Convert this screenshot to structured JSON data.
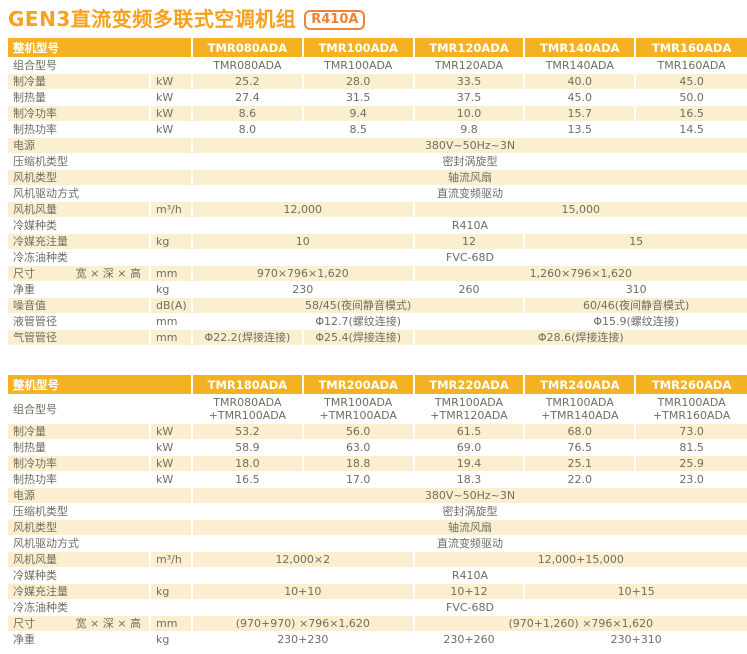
{
  "title": "GEN3直流变频多联式空调机组",
  "badge": "R410A",
  "colors": {
    "header_bg": "#F4B223",
    "stripe_bg": "#FCEFD0",
    "title_color": "#F7A11E",
    "badge_color": "#F08233",
    "text_color": "#6E6E62"
  },
  "tables": [
    {
      "corner_label": "整机型号",
      "models": [
        "TMR080ADA",
        "TMR100ADA",
        "TMR120ADA",
        "TMR140ADA",
        "TMR160ADA"
      ],
      "rows": [
        {
          "label": "组合型号",
          "unit": "",
          "sublabel": "",
          "cells": [
            {
              "t": "TMR080ADA",
              "s": 1
            },
            {
              "t": "TMR100ADA",
              "s": 1
            },
            {
              "t": "TMR120ADA",
              "s": 1
            },
            {
              "t": "TMR140ADA",
              "s": 1
            },
            {
              "t": "TMR160ADA",
              "s": 1
            }
          ]
        },
        {
          "label": "制冷量",
          "unit": "kW",
          "sublabel": "",
          "cells": [
            {
              "t": "25.2",
              "s": 1
            },
            {
              "t": "28.0",
              "s": 1
            },
            {
              "t": "33.5",
              "s": 1
            },
            {
              "t": "40.0",
              "s": 1
            },
            {
              "t": "45.0",
              "s": 1
            }
          ]
        },
        {
          "label": "制热量",
          "unit": "kW",
          "sublabel": "",
          "cells": [
            {
              "t": "27.4",
              "s": 1
            },
            {
              "t": "31.5",
              "s": 1
            },
            {
              "t": "37.5",
              "s": 1
            },
            {
              "t": "45.0",
              "s": 1
            },
            {
              "t": "50.0",
              "s": 1
            }
          ]
        },
        {
          "label": "制冷功率",
          "unit": "kW",
          "sublabel": "",
          "cells": [
            {
              "t": "8.6",
              "s": 1
            },
            {
              "t": "9.4",
              "s": 1
            },
            {
              "t": "10.0",
              "s": 1
            },
            {
              "t": "15.7",
              "s": 1
            },
            {
              "t": "16.5",
              "s": 1
            }
          ]
        },
        {
          "label": "制热功率",
          "unit": "kW",
          "sublabel": "",
          "cells": [
            {
              "t": "8.0",
              "s": 1
            },
            {
              "t": "8.5",
              "s": 1
            },
            {
              "t": "9.8",
              "s": 1
            },
            {
              "t": "13.5",
              "s": 1
            },
            {
              "t": "14.5",
              "s": 1
            }
          ]
        },
        {
          "label": "电源",
          "unit": "",
          "sublabel": "",
          "cells": [
            {
              "t": "380V~50Hz~3N",
              "s": 5
            }
          ]
        },
        {
          "label": "压缩机类型",
          "unit": "",
          "sublabel": "",
          "cells": [
            {
              "t": "密封涡旋型",
              "s": 5
            }
          ]
        },
        {
          "label": "风机类型",
          "unit": "",
          "sublabel": "",
          "cells": [
            {
              "t": "轴流风扇",
              "s": 5
            }
          ]
        },
        {
          "label": "风机驱动方式",
          "unit": "",
          "sublabel": "",
          "cells": [
            {
              "t": "直流变频驱动",
              "s": 5
            }
          ]
        },
        {
          "label": "风机风量",
          "unit": "m³/h",
          "sublabel": "",
          "cells": [
            {
              "t": "12,000",
              "s": 2
            },
            {
              "t": "15,000",
              "s": 3
            }
          ]
        },
        {
          "label": "冷媒种类",
          "unit": "",
          "sublabel": "",
          "cells": [
            {
              "t": "R410A",
              "s": 5
            }
          ]
        },
        {
          "label": "冷媒充注量",
          "unit": "kg",
          "sublabel": "",
          "cells": [
            {
              "t": "10",
              "s": 2
            },
            {
              "t": "12",
              "s": 1
            },
            {
              "t": "15",
              "s": 2
            }
          ]
        },
        {
          "label": "冷冻油种类",
          "unit": "",
          "sublabel": "",
          "cells": [
            {
              "t": "FVC-68D",
              "s": 5
            }
          ]
        },
        {
          "label": "尺寸",
          "unit": "mm",
          "sublabel": "宽 × 深 × 高",
          "cells": [
            {
              "t": "970×796×1,620",
              "s": 2
            },
            {
              "t": "1,260×796×1,620",
              "s": 3
            }
          ]
        },
        {
          "label": "净重",
          "unit": "kg",
          "sublabel": "",
          "cells": [
            {
              "t": "230",
              "s": 2
            },
            {
              "t": "260",
              "s": 1
            },
            {
              "t": "310",
              "s": 2
            }
          ]
        },
        {
          "label": "噪音值",
          "unit": "dB(A)",
          "sublabel": "",
          "cells": [
            {
              "t": "58/45(夜间静音模式)",
              "s": 3
            },
            {
              "t": "60/46(夜间静音模式)",
              "s": 2
            }
          ]
        },
        {
          "label": "液管管径",
          "unit": "mm",
          "sublabel": "",
          "cells": [
            {
              "t": "Φ12.7(螺纹连接)",
              "s": 3
            },
            {
              "t": "Φ15.9(螺纹连接)",
              "s": 2
            }
          ]
        },
        {
          "label": "气管管径",
          "unit": "mm",
          "sublabel": "",
          "cells": [
            {
              "t": "Φ22.2(焊接连接)",
              "s": 1
            },
            {
              "t": "Φ25.4(焊接连接)",
              "s": 1
            },
            {
              "t": "Φ28.6(焊接连接)",
              "s": 3
            }
          ]
        }
      ]
    },
    {
      "corner_label": "整机型号",
      "models": [
        "TMR180ADA",
        "TMR200ADA",
        "TMR220ADA",
        "TMR240ADA",
        "TMR260ADA"
      ],
      "rows": [
        {
          "label": "组合型号",
          "unit": "",
          "sublabel": "",
          "cells": [
            {
              "t": "TMR080ADA\n+TMR100ADA",
              "s": 1
            },
            {
              "t": "TMR100ADA\n+TMR100ADA",
              "s": 1
            },
            {
              "t": "TMR100ADA\n+TMR120ADA",
              "s": 1
            },
            {
              "t": "TMR100ADA\n+TMR140ADA",
              "s": 1
            },
            {
              "t": "TMR100ADA\n+TMR160ADA",
              "s": 1
            }
          ]
        },
        {
          "label": "制冷量",
          "unit": "kW",
          "sublabel": "",
          "cells": [
            {
              "t": "53.2",
              "s": 1
            },
            {
              "t": "56.0",
              "s": 1
            },
            {
              "t": "61.5",
              "s": 1
            },
            {
              "t": "68.0",
              "s": 1
            },
            {
              "t": "73.0",
              "s": 1
            }
          ]
        },
        {
          "label": "制热量",
          "unit": "kW",
          "sublabel": "",
          "cells": [
            {
              "t": "58.9",
              "s": 1
            },
            {
              "t": "63.0",
              "s": 1
            },
            {
              "t": "69.0",
              "s": 1
            },
            {
              "t": "76.5",
              "s": 1
            },
            {
              "t": "81.5",
              "s": 1
            }
          ]
        },
        {
          "label": "制冷功率",
          "unit": "kW",
          "sublabel": "",
          "cells": [
            {
              "t": "18.0",
              "s": 1
            },
            {
              "t": "18.8",
              "s": 1
            },
            {
              "t": "19.4",
              "s": 1
            },
            {
              "t": "25.1",
              "s": 1
            },
            {
              "t": "25.9",
              "s": 1
            }
          ]
        },
        {
          "label": "制热功率",
          "unit": "kW",
          "sublabel": "",
          "cells": [
            {
              "t": "16.5",
              "s": 1
            },
            {
              "t": "17.0",
              "s": 1
            },
            {
              "t": "18.3",
              "s": 1
            },
            {
              "t": "22.0",
              "s": 1
            },
            {
              "t": "23.0",
              "s": 1
            }
          ]
        },
        {
          "label": "电源",
          "unit": "",
          "sublabel": "",
          "cells": [
            {
              "t": "380V~50Hz~3N",
              "s": 5
            }
          ]
        },
        {
          "label": "压缩机类型",
          "unit": "",
          "sublabel": "",
          "cells": [
            {
              "t": "密封涡旋型",
              "s": 5
            }
          ]
        },
        {
          "label": "风机类型",
          "unit": "",
          "sublabel": "",
          "cells": [
            {
              "t": "轴流风扇",
              "s": 5
            }
          ]
        },
        {
          "label": "风机驱动方式",
          "unit": "",
          "sublabel": "",
          "cells": [
            {
              "t": "直流变频驱动",
              "s": 5
            }
          ]
        },
        {
          "label": "风机风量",
          "unit": "m³/h",
          "sublabel": "",
          "cells": [
            {
              "t": "12,000×2",
              "s": 2
            },
            {
              "t": "12,000+15,000",
              "s": 3
            }
          ]
        },
        {
          "label": "冷媒种类",
          "unit": "",
          "sublabel": "",
          "cells": [
            {
              "t": "R410A",
              "s": 5
            }
          ]
        },
        {
          "label": "冷媒充注量",
          "unit": "kg",
          "sublabel": "",
          "cells": [
            {
              "t": "10+10",
              "s": 2
            },
            {
              "t": "10+12",
              "s": 1
            },
            {
              "t": "10+15",
              "s": 2
            }
          ]
        },
        {
          "label": "冷冻油种类",
          "unit": "",
          "sublabel": "",
          "cells": [
            {
              "t": "FVC-68D",
              "s": 5
            }
          ]
        },
        {
          "label": "尺寸",
          "unit": "mm",
          "sublabel": "宽 × 深 × 高",
          "cells": [
            {
              "t": "(970+970) ×796×1,620",
              "s": 2
            },
            {
              "t": "(970+1,260) ×796×1,620",
              "s": 3
            }
          ]
        },
        {
          "label": "净重",
          "unit": "kg",
          "sublabel": "",
          "cells": [
            {
              "t": "230+230",
              "s": 2
            },
            {
              "t": "230+260",
              "s": 1
            },
            {
              "t": "230+310",
              "s": 2
            }
          ]
        }
      ]
    }
  ]
}
